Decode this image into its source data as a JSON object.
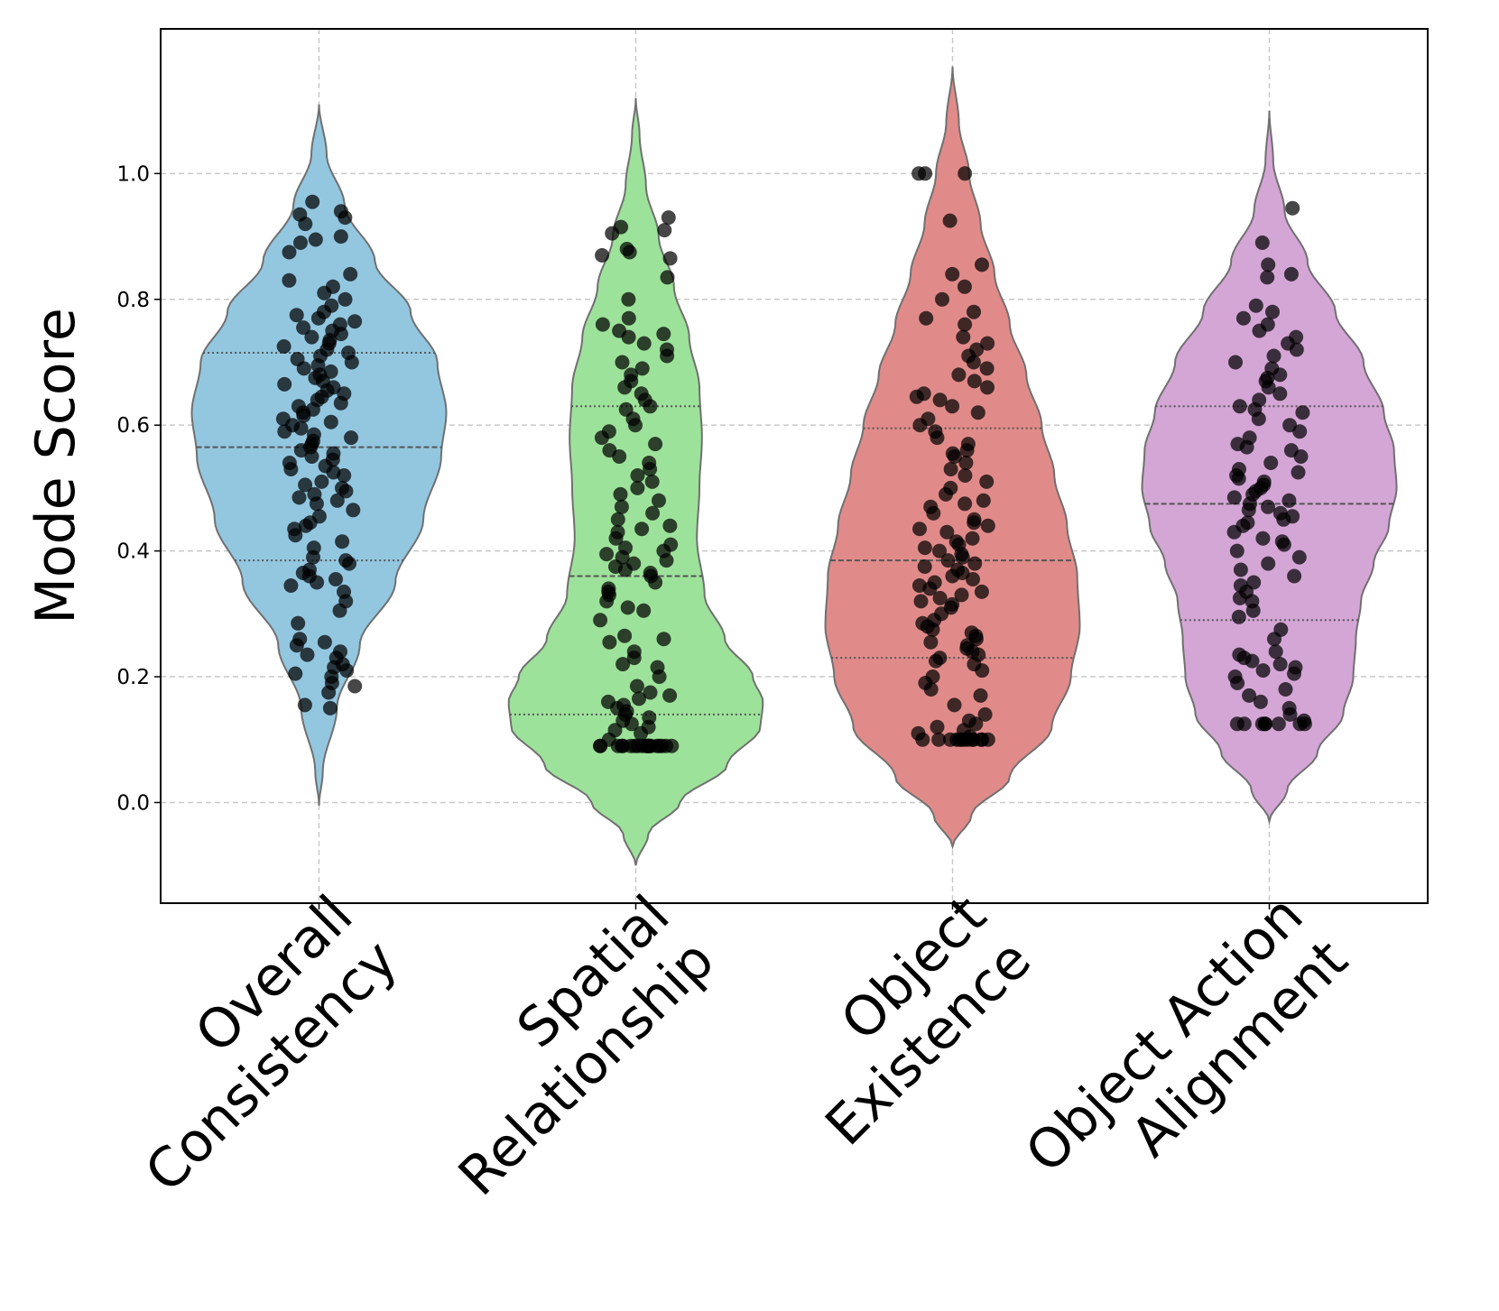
{
  "colors": {
    "overall_consistency": "#93c7e0",
    "spatial_relationship": "#9de29a",
    "object_existence": "#e08b8a",
    "object_action_alignment": "#d4a6d6",
    "points": "#000000",
    "violin_edge": "#707070",
    "grid": "#c9c9c9"
  },
  "chart_data": {
    "type": "violin",
    "ylabel": "Mode Score",
    "xlabel": "",
    "ylim": [
      -0.16,
      1.23
    ],
    "yticks": [
      0.0,
      0.2,
      0.4,
      0.6,
      0.8,
      1.0
    ],
    "ytick_labels": [
      "0.0",
      "0.2",
      "0.4",
      "0.6",
      "0.8",
      "1.0"
    ],
    "grid": true,
    "categories": [
      {
        "key": "overall_consistency",
        "label_lines": [
          "Overall",
          "Consistency"
        ]
      },
      {
        "key": "spatial_relationship",
        "label_lines": [
          "Spatial",
          "Relationship"
        ]
      },
      {
        "key": "object_existence",
        "label_lines": [
          "Object",
          "Existence"
        ]
      },
      {
        "key": "object_action_alignment",
        "label_lines": [
          "Object Action",
          "Alignment"
        ]
      }
    ],
    "series": [
      {
        "name": "Overall Consistency",
        "key": "overall_consistency",
        "quartiles": {
          "q1": 0.385,
          "median": 0.565,
          "q3": 0.715
        },
        "density_profile": [
          [
            -0.005,
            0.0
          ],
          [
            0.05,
            0.03
          ],
          [
            0.15,
            0.14
          ],
          [
            0.25,
            0.32
          ],
          [
            0.35,
            0.6
          ],
          [
            0.45,
            0.82
          ],
          [
            0.55,
            0.96
          ],
          [
            0.62,
            1.0
          ],
          [
            0.7,
            0.93
          ],
          [
            0.78,
            0.72
          ],
          [
            0.86,
            0.44
          ],
          [
            0.95,
            0.2
          ],
          [
            1.03,
            0.06
          ],
          [
            1.11,
            0.0
          ]
        ],
        "points": [
          0.15,
          0.155,
          0.175,
          0.185,
          0.19,
          0.2,
          0.205,
          0.21,
          0.215,
          0.22,
          0.23,
          0.235,
          0.24,
          0.25,
          0.255,
          0.26,
          0.285,
          0.305,
          0.32,
          0.335,
          0.345,
          0.35,
          0.355,
          0.36,
          0.365,
          0.37,
          0.38,
          0.385,
          0.39,
          0.405,
          0.415,
          0.425,
          0.435,
          0.44,
          0.445,
          0.455,
          0.465,
          0.475,
          0.48,
          0.485,
          0.49,
          0.495,
          0.5,
          0.505,
          0.51,
          0.52,
          0.525,
          0.53,
          0.535,
          0.54,
          0.545,
          0.55,
          0.555,
          0.56,
          0.565,
          0.57,
          0.575,
          0.58,
          0.585,
          0.59,
          0.595,
          0.6,
          0.605,
          0.61,
          0.615,
          0.62,
          0.625,
          0.63,
          0.635,
          0.64,
          0.645,
          0.65,
          0.655,
          0.66,
          0.665,
          0.67,
          0.675,
          0.68,
          0.685,
          0.69,
          0.695,
          0.7,
          0.705,
          0.71,
          0.715,
          0.72,
          0.725,
          0.73,
          0.735,
          0.74,
          0.745,
          0.75,
          0.755,
          0.76,
          0.765,
          0.77,
          0.775,
          0.78,
          0.79,
          0.8,
          0.81,
          0.82,
          0.83,
          0.84,
          0.875,
          0.89,
          0.895,
          0.9,
          0.92,
          0.93,
          0.935,
          0.94,
          0.955
        ]
      },
      {
        "name": "Spatial Relationship",
        "key": "spatial_relationship",
        "quartiles": {
          "q1": 0.14,
          "median": 0.36,
          "q3": 0.63
        },
        "density_profile": [
          [
            -0.1,
            0.0
          ],
          [
            -0.05,
            0.1
          ],
          [
            0.0,
            0.35
          ],
          [
            0.06,
            0.72
          ],
          [
            0.12,
            0.98
          ],
          [
            0.16,
            1.0
          ],
          [
            0.2,
            0.92
          ],
          [
            0.26,
            0.7
          ],
          [
            0.33,
            0.54
          ],
          [
            0.42,
            0.48
          ],
          [
            0.5,
            0.5
          ],
          [
            0.58,
            0.52
          ],
          [
            0.66,
            0.5
          ],
          [
            0.74,
            0.42
          ],
          [
            0.82,
            0.3
          ],
          [
            0.9,
            0.18
          ],
          [
            0.98,
            0.08
          ],
          [
            1.06,
            0.03
          ],
          [
            1.12,
            0.0
          ]
        ],
        "points": [
          0.09,
          0.09,
          0.09,
          0.09,
          0.09,
          0.09,
          0.09,
          0.09,
          0.09,
          0.09,
          0.09,
          0.09,
          0.09,
          0.09,
          0.09,
          0.09,
          0.09,
          0.09,
          0.09,
          0.09,
          0.1,
          0.11,
          0.115,
          0.12,
          0.125,
          0.13,
          0.135,
          0.14,
          0.145,
          0.15,
          0.155,
          0.16,
          0.165,
          0.17,
          0.175,
          0.185,
          0.2,
          0.215,
          0.22,
          0.23,
          0.24,
          0.255,
          0.26,
          0.265,
          0.29,
          0.305,
          0.31,
          0.32,
          0.33,
          0.335,
          0.34,
          0.35,
          0.36,
          0.365,
          0.37,
          0.375,
          0.38,
          0.385,
          0.39,
          0.395,
          0.4,
          0.405,
          0.41,
          0.42,
          0.43,
          0.435,
          0.44,
          0.45,
          0.46,
          0.47,
          0.48,
          0.49,
          0.5,
          0.51,
          0.52,
          0.53,
          0.54,
          0.55,
          0.56,
          0.57,
          0.58,
          0.59,
          0.6,
          0.61,
          0.625,
          0.63,
          0.64,
          0.65,
          0.66,
          0.67,
          0.68,
          0.69,
          0.7,
          0.71,
          0.72,
          0.73,
          0.74,
          0.745,
          0.75,
          0.76,
          0.77,
          0.8,
          0.835,
          0.865,
          0.87,
          0.875,
          0.88,
          0.905,
          0.91,
          0.915,
          0.93
        ]
      },
      {
        "name": "Object Existence",
        "key": "object_existence",
        "quartiles": {
          "q1": 0.23,
          "median": 0.385,
          "q3": 0.595
        },
        "density_profile": [
          [
            -0.07,
            0.0
          ],
          [
            -0.02,
            0.15
          ],
          [
            0.04,
            0.45
          ],
          [
            0.12,
            0.78
          ],
          [
            0.2,
            0.93
          ],
          [
            0.28,
            1.0
          ],
          [
            0.36,
            0.98
          ],
          [
            0.44,
            0.9
          ],
          [
            0.52,
            0.8
          ],
          [
            0.6,
            0.7
          ],
          [
            0.68,
            0.58
          ],
          [
            0.76,
            0.45
          ],
          [
            0.84,
            0.33
          ],
          [
            0.92,
            0.22
          ],
          [
            1.0,
            0.13
          ],
          [
            1.08,
            0.05
          ],
          [
            1.17,
            0.0
          ]
        ],
        "points": [
          0.1,
          0.1,
          0.1,
          0.1,
          0.1,
          0.1,
          0.1,
          0.1,
          0.1,
          0.1,
          0.1,
          0.1,
          0.1,
          0.105,
          0.11,
          0.115,
          0.12,
          0.125,
          0.13,
          0.14,
          0.155,
          0.17,
          0.18,
          0.19,
          0.2,
          0.21,
          0.22,
          0.225,
          0.23,
          0.235,
          0.24,
          0.245,
          0.25,
          0.255,
          0.26,
          0.265,
          0.27,
          0.275,
          0.28,
          0.285,
          0.29,
          0.3,
          0.31,
          0.315,
          0.32,
          0.325,
          0.33,
          0.335,
          0.34,
          0.345,
          0.35,
          0.355,
          0.36,
          0.365,
          0.37,
          0.375,
          0.38,
          0.385,
          0.39,
          0.395,
          0.4,
          0.405,
          0.41,
          0.415,
          0.42,
          0.43,
          0.435,
          0.44,
          0.445,
          0.45,
          0.46,
          0.47,
          0.475,
          0.48,
          0.49,
          0.5,
          0.51,
          0.52,
          0.53,
          0.54,
          0.55,
          0.555,
          0.56,
          0.57,
          0.58,
          0.59,
          0.6,
          0.61,
          0.62,
          0.63,
          0.64,
          0.645,
          0.65,
          0.66,
          0.67,
          0.68,
          0.69,
          0.7,
          0.71,
          0.72,
          0.73,
          0.74,
          0.76,
          0.77,
          0.78,
          0.8,
          0.82,
          0.84,
          0.855,
          0.925,
          1.0,
          1.0,
          1.0
        ]
      },
      {
        "name": "Object Action Alignment",
        "key": "object_action_alignment",
        "quartiles": {
          "q1": 0.29,
          "median": 0.475,
          "q3": 0.63
        },
        "density_profile": [
          [
            -0.03,
            0.0
          ],
          [
            0.02,
            0.14
          ],
          [
            0.08,
            0.38
          ],
          [
            0.14,
            0.58
          ],
          [
            0.2,
            0.66
          ],
          [
            0.26,
            0.68
          ],
          [
            0.32,
            0.72
          ],
          [
            0.38,
            0.82
          ],
          [
            0.44,
            0.94
          ],
          [
            0.5,
            1.0
          ],
          [
            0.56,
            0.98
          ],
          [
            0.62,
            0.9
          ],
          [
            0.7,
            0.74
          ],
          [
            0.78,
            0.52
          ],
          [
            0.86,
            0.3
          ],
          [
            0.94,
            0.12
          ],
          [
            1.02,
            0.03
          ],
          [
            1.1,
            0.0
          ]
        ],
        "points": [
          0.125,
          0.125,
          0.125,
          0.125,
          0.125,
          0.125,
          0.125,
          0.125,
          0.13,
          0.14,
          0.15,
          0.16,
          0.17,
          0.18,
          0.19,
          0.2,
          0.205,
          0.21,
          0.215,
          0.22,
          0.225,
          0.23,
          0.235,
          0.24,
          0.26,
          0.275,
          0.295,
          0.305,
          0.32,
          0.325,
          0.335,
          0.345,
          0.35,
          0.36,
          0.37,
          0.38,
          0.39,
          0.4,
          0.41,
          0.415,
          0.42,
          0.43,
          0.44,
          0.445,
          0.45,
          0.455,
          0.46,
          0.465,
          0.47,
          0.475,
          0.48,
          0.485,
          0.49,
          0.495,
          0.5,
          0.505,
          0.51,
          0.515,
          0.52,
          0.525,
          0.53,
          0.54,
          0.55,
          0.56,
          0.565,
          0.57,
          0.58,
          0.59,
          0.6,
          0.61,
          0.62,
          0.625,
          0.63,
          0.64,
          0.65,
          0.66,
          0.67,
          0.675,
          0.68,
          0.69,
          0.7,
          0.71,
          0.72,
          0.73,
          0.74,
          0.75,
          0.76,
          0.77,
          0.78,
          0.79,
          0.835,
          0.84,
          0.855,
          0.89,
          0.945
        ]
      }
    ]
  }
}
